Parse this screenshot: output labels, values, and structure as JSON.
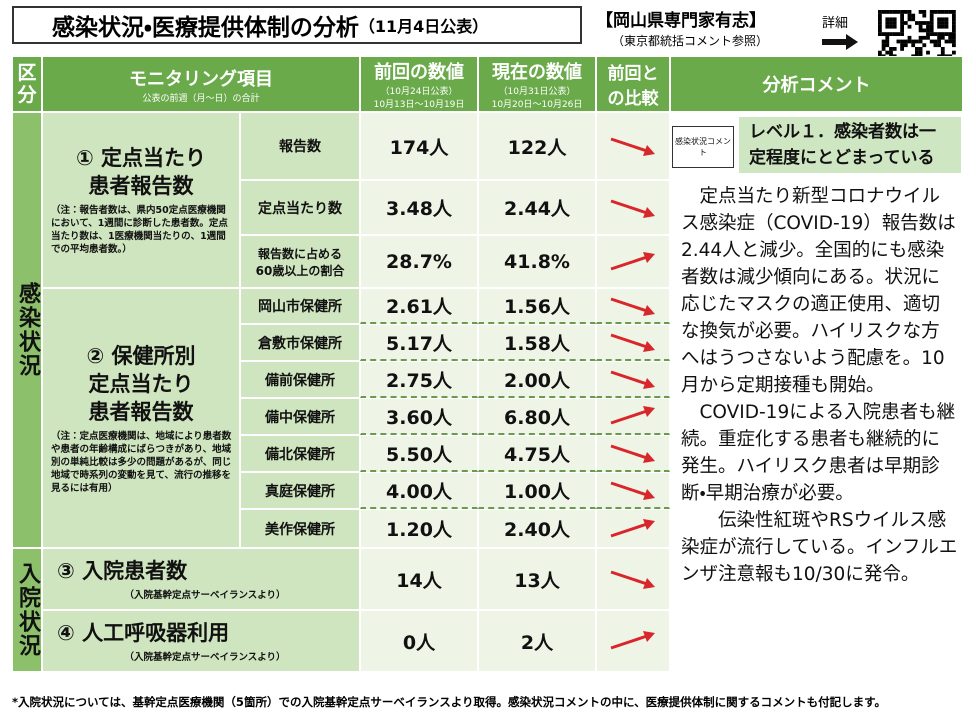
{
  "header": {
    "title": "感染状況・医療提供体制の分析",
    "date": "（11月4日公表）",
    "source": "【岡山県専門家有志】",
    "source_note": "（東京都統括コメント参照）",
    "detail": "詳細"
  },
  "columns": {
    "category": [
      "区",
      "分"
    ],
    "item": "モニタリング項目",
    "item_note": "公表の前週（月～日）の合計",
    "previous": "前回の数値",
    "previous_date": "（10月24日公表）",
    "previous_range": "10月13日～10月19日",
    "current": "現在の数値",
    "current_date": "（10月31日公表）",
    "current_range": "10月20日～10月26日",
    "comparison": [
      "前回と",
      "の比較"
    ],
    "comment": "分析コメント"
  },
  "sections": [
    {
      "label": "感染状況"
    },
    {
      "label": "入院状況"
    }
  ],
  "groups": [
    {
      "label": [
        "① 定点当たり",
        "患者報告数"
      ],
      "note": "（注：報告者数は、県内50定点医療機関において、1週間に診断した患者数。定点当たり数は、1医療機関当たりの、1週間での平均患者数。）",
      "rows": [
        {
          "label": "報告数",
          "previous": "174人",
          "current": "122人",
          "trend": "down"
        },
        {
          "label": "定点当たり数",
          "previous": "3.48人",
          "current": "2.44人",
          "trend": "down"
        },
        {
          "label": "報告数に占める60歳以上の割合",
          "previous": "28.7%",
          "current": "41.8%",
          "trend": "up"
        }
      ]
    },
    {
      "label": [
        "② 保健所別",
        "定点当たり",
        "患者報告数"
      ],
      "note": "（注：定点医療機関は、地域により患者数や患者の年齢構成にばらつきがあり、地域別の単純比較は多少の問題があるが、同じ地域で時系列の変動を見て、流行の推移を見るには有用）",
      "rows": [
        {
          "label": "岡山市保健所",
          "previous": "2.61人",
          "current": "1.56人",
          "trend": "down"
        },
        {
          "label": "倉敷市保健所",
          "previous": "5.17人",
          "current": "1.58人",
          "trend": "down"
        },
        {
          "label": "備前保健所",
          "previous": "2.75人",
          "current": "2.00人",
          "trend": "down"
        },
        {
          "label": "備中保健所",
          "previous": "3.60人",
          "current": "6.80人",
          "trend": "up"
        },
        {
          "label": "備北保健所",
          "previous": "5.50人",
          "current": "4.75人",
          "trend": "down"
        },
        {
          "label": "真庭保健所",
          "previous": "4.00人",
          "current": "1.00人",
          "trend": "down"
        },
        {
          "label": "美作保健所",
          "previous": "1.20人",
          "current": "2.40人",
          "trend": "up"
        }
      ]
    },
    {
      "label": [
        "③ 入院患者数"
      ],
      "note": "（入院基幹定点サーベイランスより）",
      "rows": [
        {
          "previous": "14人",
          "current": "13人",
          "trend": "down"
        }
      ]
    },
    {
      "label": [
        "④ 人工呼吸器利用"
      ],
      "note": "（入院基幹定点サーベイランスより）",
      "rows": [
        {
          "previous": "0人",
          "current": "2人",
          "trend": "up"
        }
      ]
    }
  ],
  "comment": {
    "tag": "感染状況コメント",
    "level": "レベル１．感染者数は一定程度にとどまっている",
    "paragraphs": [
      "　定点当たり新型コロナウイルス感染症（COVID-19）報告数は2.44人と減少。全国的にも感染者数は減少傾向にある。状況に応じたマスクの適正使用、適切な換気が必要。ハイリスクな方へはうつさないよう配慮を。10月から定期接種も開始。",
      "　COVID-19による入院患者も継続。重症化する患者も継続的に発生。ハイリスク患者は早期診断・早期治療が必要。",
      "　　伝染性紅斑やRSウイルス感染症が流行している。インフルエンザ注意報も10/30に発令。"
    ]
  },
  "footer": "*入院状況については、基幹定点医療機関（5箇所）での入院基幹定点サーベイランスより取得。感染状況コメントの中に、医療提供体制に関するコメントも付記します。"
}
